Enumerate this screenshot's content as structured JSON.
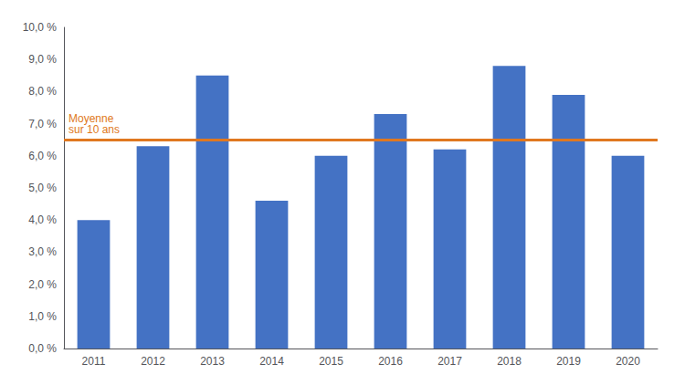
{
  "chart_data": {
    "type": "bar",
    "categories": [
      "2011",
      "2012",
      "2013",
      "2014",
      "2015",
      "2016",
      "2017",
      "2018",
      "2019",
      "2020"
    ],
    "values": [
      4.0,
      6.3,
      8.5,
      4.6,
      6.0,
      7.3,
      6.2,
      8.8,
      7.9,
      6.0
    ],
    "color": "#4472C4",
    "average": {
      "value": 6.5,
      "label": "Moyenne\nsur 10 ans",
      "color": "#E07820"
    },
    "ylim": [
      0,
      10.0
    ],
    "yticks": [
      {
        "value": 0.0,
        "label": "0,0 %"
      },
      {
        "value": 1.0,
        "label": "1,0 %"
      },
      {
        "value": 2.0,
        "label": "2,0 %"
      },
      {
        "value": 3.0,
        "label": "3,0 %"
      },
      {
        "value": 4.0,
        "label": "4,0 %"
      },
      {
        "value": 5.0,
        "label": "5,0 %"
      },
      {
        "value": 6.0,
        "label": "6,0 %"
      },
      {
        "value": 7.0,
        "label": "7,0 %"
      },
      {
        "value": 8.0,
        "label": "8,0 %"
      },
      {
        "value": 9.0,
        "label": "9,0 %"
      },
      {
        "value": 10.0,
        "label": "10,0 %"
      }
    ],
    "grid": false
  }
}
